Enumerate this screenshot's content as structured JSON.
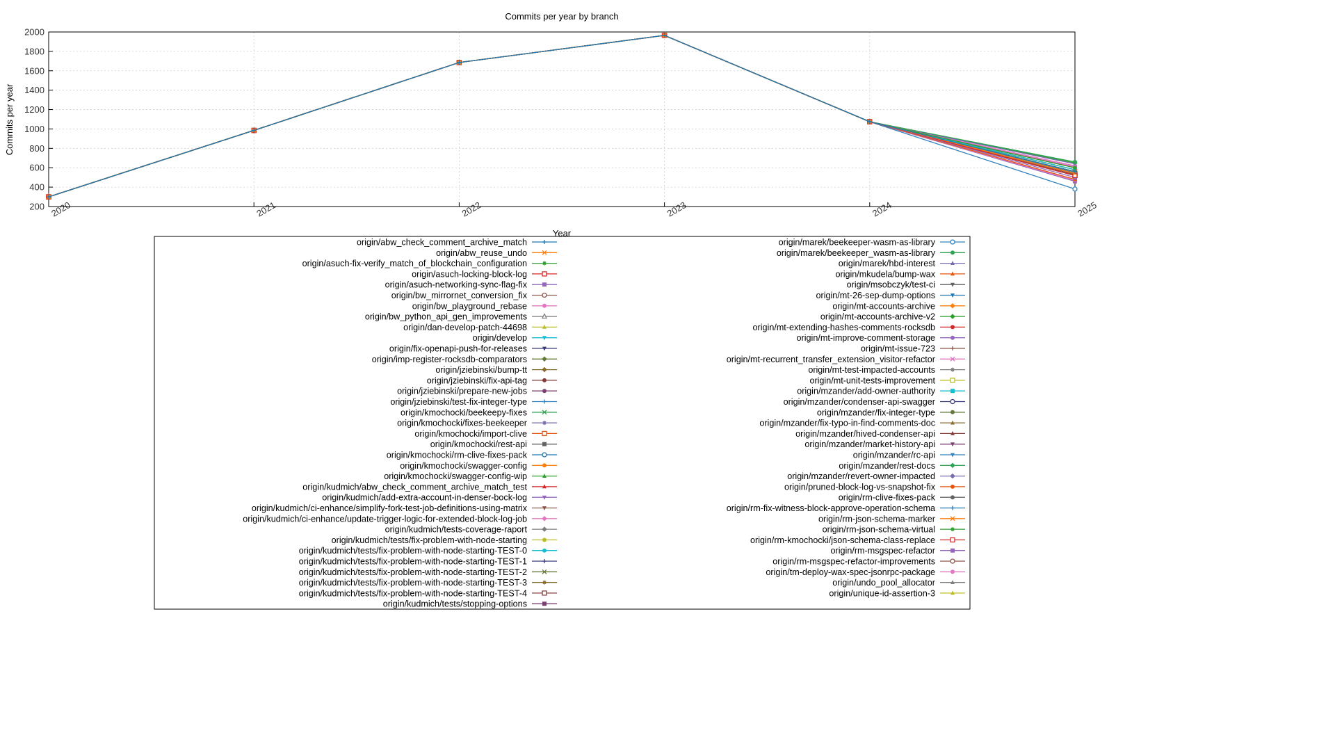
{
  "chart_data": {
    "type": "line",
    "title": "Commits per year by branch",
    "xlabel": "Year",
    "ylabel": "Commits per year",
    "x": [
      2020,
      2021,
      2022,
      2023,
      2024,
      2025
    ],
    "xlim": [
      2020,
      2025
    ],
    "ylim": [
      200,
      2000
    ],
    "yticks": [
      200,
      400,
      600,
      800,
      1000,
      1200,
      1400,
      1600,
      1800,
      2000
    ],
    "grid": true,
    "legend_placement": "bottom-center, two columns",
    "shared_history": [
      300,
      985,
      1685,
      1965,
      1075
    ],
    "series": [
      {
        "name": "origin/abw_check_comment_archive_match",
        "v2025": 560,
        "color": "#1f77b4",
        "marker": "plus"
      },
      {
        "name": "origin/abw_reuse_undo",
        "v2025": 540,
        "color": "#ff7f0e",
        "marker": "x"
      },
      {
        "name": "origin/asuch-fix-verify_match_of_blockchain_configuration",
        "v2025": 600,
        "color": "#2ca02c",
        "marker": "asterisk"
      },
      {
        "name": "origin/asuch-locking-block-log",
        "v2025": 520,
        "color": "#d62728",
        "marker": "square-open"
      },
      {
        "name": "origin/asuch-networking-sync-flag-fix",
        "v2025": 500,
        "color": "#9467bd",
        "marker": "square"
      },
      {
        "name": "origin/bw_mirrornet_conversion_fix",
        "v2025": 530,
        "color": "#8c564b",
        "marker": "circle-open"
      },
      {
        "name": "origin/bw_playground_rebase",
        "v2025": 610,
        "color": "#e377c2",
        "marker": "circle"
      },
      {
        "name": "origin/bw_python_api_gen_improvements",
        "v2025": 550,
        "color": "#7f7f7f",
        "marker": "triangle-open"
      },
      {
        "name": "origin/dan-develop-patch-44698",
        "v2025": 560,
        "color": "#bcbd22",
        "marker": "triangle"
      },
      {
        "name": "origin/develop",
        "v2025": 580,
        "color": "#17becf",
        "marker": "triangle-down"
      },
      {
        "name": "origin/fix-openapi-push-for-releases",
        "v2025": 540,
        "color": "#393b79",
        "marker": "triangle-down"
      },
      {
        "name": "origin/imp-register-rocksdb-comparators",
        "v2025": 560,
        "color": "#637939",
        "marker": "diamond"
      },
      {
        "name": "origin/jziebinski/bump-tt",
        "v2025": 540,
        "color": "#8c6d31",
        "marker": "diamond"
      },
      {
        "name": "origin/jziebinski/fix-api-tag",
        "v2025": 560,
        "color": "#843c39",
        "marker": "circle"
      },
      {
        "name": "origin/jziebinski/prepare-new-jobs",
        "v2025": 540,
        "color": "#7b4173",
        "marker": "circle"
      },
      {
        "name": "origin/jziebinski/test-fix-integer-type",
        "v2025": 560,
        "color": "#3182bd",
        "marker": "plus"
      },
      {
        "name": "origin/kmochocki/beekeepy-fixes",
        "v2025": 540,
        "color": "#31a354",
        "marker": "x"
      },
      {
        "name": "origin/kmochocki/fixes-beekeeper",
        "v2025": 520,
        "color": "#756bb1",
        "marker": "asterisk"
      },
      {
        "name": "origin/kmochocki/import-clive",
        "v2025": 540,
        "color": "#e6550d",
        "marker": "square-open"
      },
      {
        "name": "origin/kmochocki/rest-api",
        "v2025": 520,
        "color": "#636363",
        "marker": "square"
      },
      {
        "name": "origin/kmochocki/rm-clive-fixes-pack",
        "v2025": 540,
        "color": "#1f77b4",
        "marker": "circle-open"
      },
      {
        "name": "origin/kmochocki/swagger-config",
        "v2025": 560,
        "color": "#ff7f0e",
        "marker": "circle"
      },
      {
        "name": "origin/kmochocki/swagger-config-wip",
        "v2025": 580,
        "color": "#2ca02c",
        "marker": "triangle"
      },
      {
        "name": "origin/kudmich/abw_check_comment_archive_match_test",
        "v2025": 600,
        "color": "#d62728",
        "marker": "triangle"
      },
      {
        "name": "origin/kudmich/add-extra-account-in-denser-bock-log",
        "v2025": 540,
        "color": "#9467bd",
        "marker": "triangle-down"
      },
      {
        "name": "origin/kudmich/ci-enhance/simplify-fork-test-job-definitions-using-matrix",
        "v2025": 520,
        "color": "#8c564b",
        "marker": "triangle-down"
      },
      {
        "name": "origin/kudmich/ci-enhance/update-trigger-logic-for-extended-block-log-job",
        "v2025": 540,
        "color": "#e377c2",
        "marker": "diamond"
      },
      {
        "name": "origin/kudmich/tests-coverage-raport",
        "v2025": 560,
        "color": "#7f7f7f",
        "marker": "diamond"
      },
      {
        "name": "origin/kudmich/tests/fix-problem-with-node-starting",
        "v2025": 540,
        "color": "#bcbd22",
        "marker": "circle"
      },
      {
        "name": "origin/kudmich/tests/fix-problem-with-node-starting-TEST-0",
        "v2025": 560,
        "color": "#17becf",
        "marker": "circle"
      },
      {
        "name": "origin/kudmich/tests/fix-problem-with-node-starting-TEST-1",
        "v2025": 540,
        "color": "#393b79",
        "marker": "plus"
      },
      {
        "name": "origin/kudmich/tests/fix-problem-with-node-starting-TEST-2",
        "v2025": 520,
        "color": "#637939",
        "marker": "x"
      },
      {
        "name": "origin/kudmich/tests/fix-problem-with-node-starting-TEST-3",
        "v2025": 540,
        "color": "#8c6d31",
        "marker": "asterisk"
      },
      {
        "name": "origin/kudmich/tests/fix-problem-with-node-starting-TEST-4",
        "v2025": 520,
        "color": "#843c39",
        "marker": "square-open"
      },
      {
        "name": "origin/kudmich/tests/stopping-options",
        "v2025": 540,
        "color": "#7b4173",
        "marker": "square"
      },
      {
        "name": "origin/marek/beekeeper-wasm-as-library",
        "v2025": 380,
        "color": "#3182bd",
        "marker": "circle-open"
      },
      {
        "name": "origin/marek/beekeeper_wasm-as-library",
        "v2025": 660,
        "color": "#31a354",
        "marker": "circle"
      },
      {
        "name": "origin/marek/hbd-interest",
        "v2025": 640,
        "color": "#756bb1",
        "marker": "triangle"
      },
      {
        "name": "origin/mkudela/bump-wax",
        "v2025": 480,
        "color": "#e6550d",
        "marker": "triangle"
      },
      {
        "name": "origin/msobczyk/test-ci",
        "v2025": 540,
        "color": "#636363",
        "marker": "triangle-down"
      },
      {
        "name": "origin/mt-26-sep-dump-options",
        "v2025": 560,
        "color": "#1f77b4",
        "marker": "triangle-down"
      },
      {
        "name": "origin/mt-accounts-archive",
        "v2025": 580,
        "color": "#ff7f0e",
        "marker": "diamond"
      },
      {
        "name": "origin/mt-accounts-archive-v2",
        "v2025": 650,
        "color": "#2ca02c",
        "marker": "diamond"
      },
      {
        "name": "origin/mt-extending-hashes-comments-rocksdb",
        "v2025": 560,
        "color": "#d62728",
        "marker": "circle"
      },
      {
        "name": "origin/mt-improve-comment-storage",
        "v2025": 600,
        "color": "#9467bd",
        "marker": "circle"
      },
      {
        "name": "origin/mt-issue-723",
        "v2025": 540,
        "color": "#8c564b",
        "marker": "plus"
      },
      {
        "name": "origin/mt-recurrent_transfer_extension_visitor-refactor",
        "v2025": 470,
        "color": "#e377c2",
        "marker": "x"
      },
      {
        "name": "origin/mt-test-impacted-accounts",
        "v2025": 520,
        "color": "#7f7f7f",
        "marker": "asterisk"
      },
      {
        "name": "origin/mt-unit-tests-improvement",
        "v2025": 540,
        "color": "#bcbd22",
        "marker": "square-open"
      },
      {
        "name": "origin/mzander/add-owner-authority",
        "v2025": 560,
        "color": "#17becf",
        "marker": "square"
      },
      {
        "name": "origin/mzander/condenser-api-swagger",
        "v2025": 540,
        "color": "#393b79",
        "marker": "circle-open"
      },
      {
        "name": "origin/mzander/fix-integer-type",
        "v2025": 560,
        "color": "#637939",
        "marker": "circle"
      },
      {
        "name": "origin/mzander/fix-typo-in-find-comments-doc",
        "v2025": 540,
        "color": "#8c6d31",
        "marker": "triangle"
      },
      {
        "name": "origin/mzander/hived-condenser-api",
        "v2025": 520,
        "color": "#843c39",
        "marker": "triangle"
      },
      {
        "name": "origin/mzander/market-history-api",
        "v2025": 540,
        "color": "#7b4173",
        "marker": "triangle-down"
      },
      {
        "name": "origin/mzander/rc-api",
        "v2025": 560,
        "color": "#3182bd",
        "marker": "triangle-down"
      },
      {
        "name": "origin/mzander/rest-docs",
        "v2025": 580,
        "color": "#31a354",
        "marker": "diamond"
      },
      {
        "name": "origin/mzander/revert-owner-impacted",
        "v2025": 560,
        "color": "#756bb1",
        "marker": "diamond"
      },
      {
        "name": "origin/pruned-block-log-vs-snapshot-fix",
        "v2025": 540,
        "color": "#e6550d",
        "marker": "circle"
      },
      {
        "name": "origin/rm-clive-fixes-pack",
        "v2025": 520,
        "color": "#636363",
        "marker": "circle"
      },
      {
        "name": "origin/rm-fix-witness-block-approve-operation-schema",
        "v2025": 540,
        "color": "#1f77b4",
        "marker": "plus"
      },
      {
        "name": "origin/rm-json-schema-marker",
        "v2025": 560,
        "color": "#ff7f0e",
        "marker": "x"
      },
      {
        "name": "origin/rm-json-schema-virtual",
        "v2025": 540,
        "color": "#2ca02c",
        "marker": "asterisk"
      },
      {
        "name": "origin/rm-kmochocki/json-schema-class-replace",
        "v2025": 520,
        "color": "#d62728",
        "marker": "square-open"
      },
      {
        "name": "origin/rm-msgspec-refactor",
        "v2025": 460,
        "color": "#9467bd",
        "marker": "square"
      },
      {
        "name": "origin/rm-msgspec-refactor-improvements",
        "v2025": 540,
        "color": "#8c564b",
        "marker": "circle-open"
      },
      {
        "name": "origin/tm-deploy-wax-spec-jsonrpc-package",
        "v2025": 620,
        "color": "#e377c2",
        "marker": "circle"
      },
      {
        "name": "origin/undo_pool_allocator",
        "v2025": 560,
        "color": "#7f7f7f",
        "marker": "triangle"
      },
      {
        "name": "origin/unique-id-assertion-3",
        "v2025": 540,
        "color": "#bcbd22",
        "marker": "triangle"
      }
    ]
  }
}
